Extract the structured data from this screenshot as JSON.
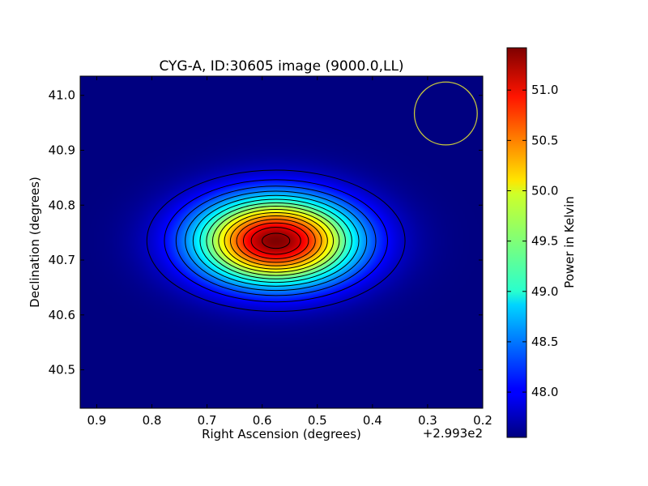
{
  "chart_data": {
    "type": "heatmap",
    "title": "CYG-A, ID:30605 image (9000.0,LL)",
    "xlabel": "Right Ascension (degrees)",
    "ylabel": "Declination (degrees)",
    "x_offset_label": "+2.993e2",
    "xlim": [
      0.93,
      0.2
    ],
    "ylim": [
      40.43,
      41.035
    ],
    "x_ticks": [
      0.9,
      0.8,
      0.7,
      0.6,
      0.5,
      0.4,
      0.3,
      0.2
    ],
    "x_tick_labels": [
      "0.9",
      "0.8",
      "0.7",
      "0.6",
      "0.5",
      "0.4",
      "0.3",
      "0.2"
    ],
    "y_ticks": [
      40.5,
      40.6,
      40.7,
      40.8,
      40.9,
      41.0
    ],
    "y_tick_labels": [
      "40.5",
      "40.6",
      "40.7",
      "40.8",
      "40.9",
      "41.0"
    ],
    "colormap": "jet",
    "colorbar": {
      "label": "Power in Kelvin",
      "vmin": 47.55,
      "vmax": 51.42,
      "ticks": [
        48.0,
        48.5,
        49.0,
        49.5,
        50.0,
        50.5,
        51.0
      ],
      "tick_labels": [
        "48.0",
        "48.5",
        "49.0",
        "49.5",
        "50.0",
        "50.5",
        "51.0"
      ]
    },
    "source": {
      "peak_ra": 0.575,
      "peak_dec": 40.735,
      "peak_value": 51.42,
      "background_value": 47.55,
      "sigma_ra": 0.1,
      "sigma_dec": 0.055
    },
    "contour_levels": [
      47.8,
      48.05,
      48.3,
      48.55,
      48.8,
      49.05,
      49.3,
      49.55,
      49.8,
      50.05,
      50.3,
      50.55,
      50.8,
      51.05,
      51.3
    ],
    "beam": {
      "center_ra": 0.267,
      "center_dec": 40.967,
      "radius_ra": 0.057
    },
    "colors": {
      "beam_outline": "#c8c83c",
      "contour": "#000000"
    }
  }
}
